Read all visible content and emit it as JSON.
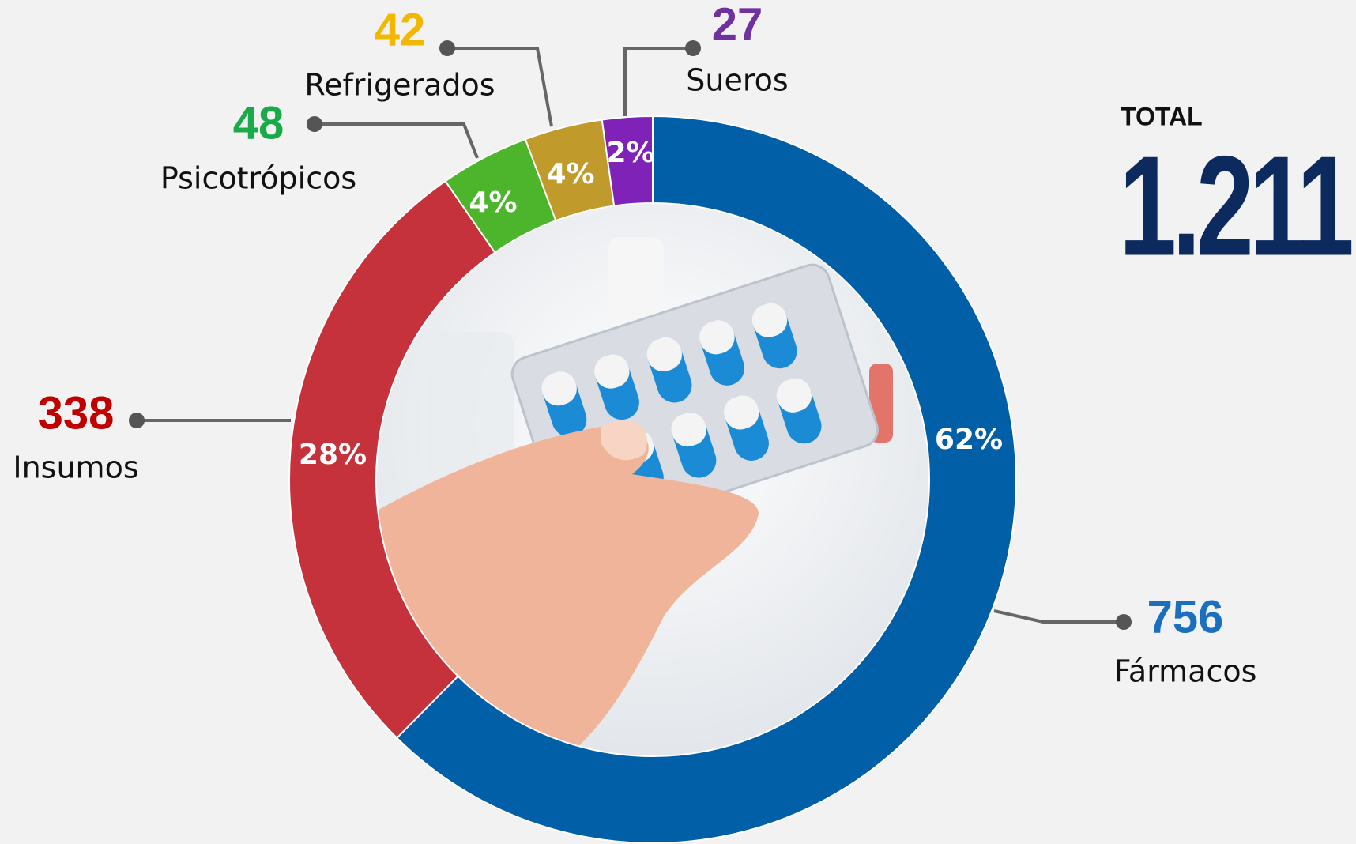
{
  "chart_data": {
    "type": "donut",
    "categories": [
      "Fármacos",
      "Insumos",
      "Psicotrópicos",
      "Refrigerados",
      "Sueros"
    ],
    "values": [
      756,
      338,
      48,
      42,
      27
    ],
    "percent_labels": [
      "62%",
      "28%",
      "4%",
      "4%",
      "2%"
    ],
    "colors": [
      "#005fa6",
      "#c6323c",
      "#4db52b",
      "#c09b2b",
      "#7e22b8"
    ],
    "label_colors": [
      "#1a6fc0",
      "#c00000",
      "#1aaa4a",
      "#f2b800",
      "#7030a0"
    ],
    "total_title": "Total",
    "total": {
      "value": 1211,
      "label": "1.211"
    }
  }
}
